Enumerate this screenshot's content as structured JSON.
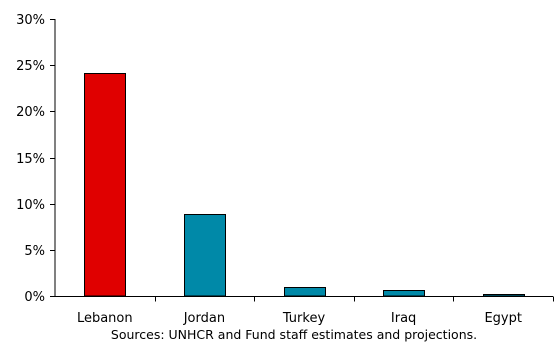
{
  "chart_data": {
    "type": "bar",
    "categories": [
      "Lebanon",
      "Jordan",
      "Turkey",
      "Iraq",
      "Egypt"
    ],
    "values": [
      24.1,
      8.8,
      0.9,
      0.6,
      0.1
    ],
    "bar_colors": [
      "#e00000",
      "#0089a8",
      "#0089a8",
      "#0089a8",
      "#0089a8"
    ],
    "ylim": [
      0,
      30
    ],
    "yticks": [
      0,
      5,
      10,
      15,
      20,
      25,
      30
    ],
    "ytick_labels": [
      "0%",
      "5%",
      "10%",
      "15%",
      "20%",
      "25%",
      "30%"
    ],
    "grid": false,
    "legend": "none"
  },
  "source_note": "Sources: UNHCR and Fund staff estimates and projections."
}
